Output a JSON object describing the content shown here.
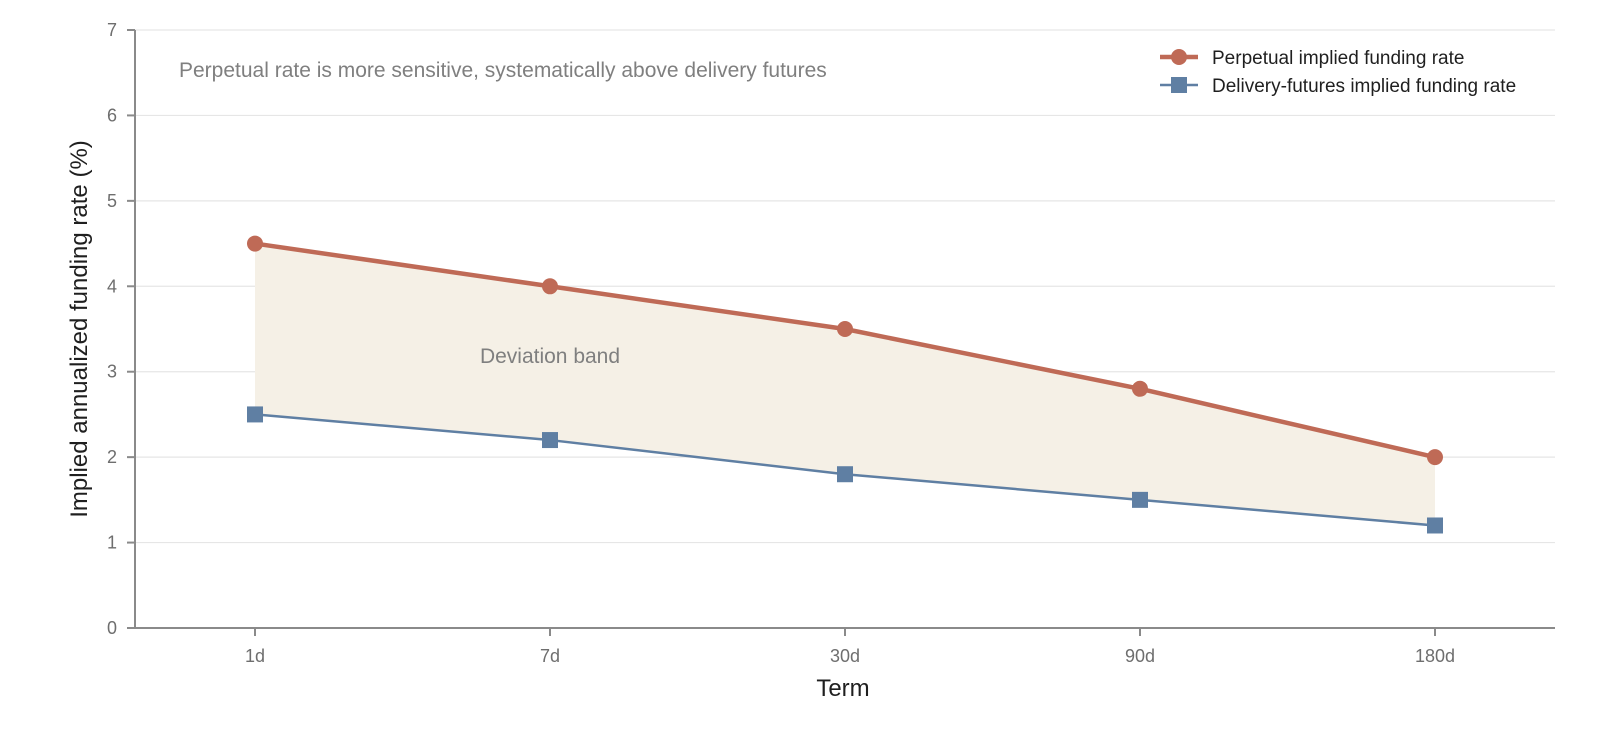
{
  "chart_data": {
    "type": "line",
    "title": "",
    "xlabel": "Term",
    "ylabel": "Implied annualized funding rate (%)",
    "categories": [
      "1d",
      "7d",
      "30d",
      "90d",
      "180d"
    ],
    "ylim": [
      0,
      7
    ],
    "yticks": [
      0,
      1,
      2,
      3,
      4,
      5,
      6,
      7
    ],
    "grid": true,
    "legend_position": "top-right",
    "series": [
      {
        "name": "Perpetual implied funding rate",
        "values": [
          4.5,
          4.0,
          3.5,
          2.8,
          2.0
        ],
        "color": "#bf6a56",
        "marker": "circle"
      },
      {
        "name": "Delivery-futures implied funding rate",
        "values": [
          2.5,
          2.2,
          1.8,
          1.5,
          1.2
        ],
        "color": "#5f7fa3",
        "marker": "square"
      }
    ],
    "band": {
      "label": "Deviation band",
      "color": "#f5f0e6",
      "label_at_category": "7d",
      "label_at_y": 3.1
    },
    "annotations": [
      {
        "text": "Perpetual rate is more sensitive, systematically above delivery futures",
        "position": "top-left"
      }
    ]
  }
}
